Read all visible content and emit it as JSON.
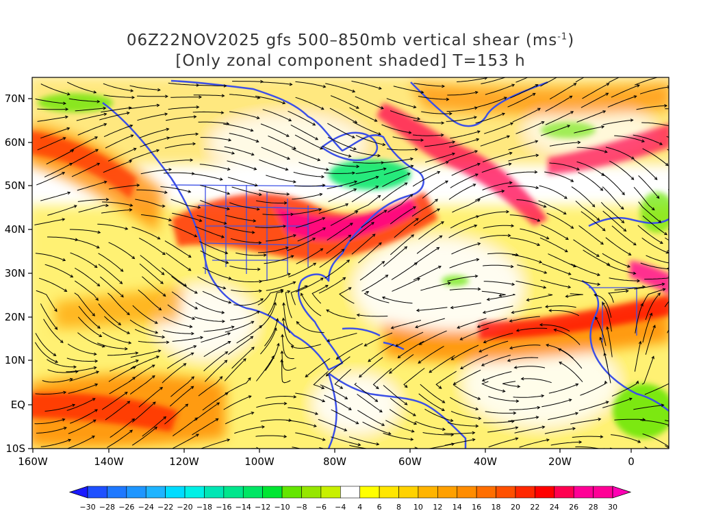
{
  "title": {
    "line1_main": "06Z22NOV2025 gfs 500–850mb vertical shear (ms",
    "line1_sup": "-1",
    "line1_end": ")",
    "line2": "[Only zonal component shaded] T=153 h"
  },
  "axes": {
    "lat_labels": [
      "70N",
      "60N",
      "50N",
      "40N",
      "30N",
      "20N",
      "10N",
      "EQ",
      "10S"
    ],
    "lon_labels": [
      "160W",
      "140W",
      "120W",
      "100W",
      "80W",
      "60W",
      "40W",
      "20W",
      "0"
    ]
  },
  "colorbar": {
    "labels": [
      "-30",
      "-28",
      "-26",
      "-24",
      "-22",
      "-20",
      "-18",
      "-16",
      "-14",
      "-12",
      "-10",
      "-8",
      "-6",
      "-4",
      "4",
      "6",
      "8",
      "10",
      "12",
      "14",
      "16",
      "18",
      "20",
      "22",
      "24",
      "26",
      "28",
      "30"
    ],
    "colors": [
      "#1a1aff",
      "#1e50ff",
      "#1e78ff",
      "#1e96ff",
      "#1eb4ff",
      "#00dcff",
      "#00f0e6",
      "#00e6b4",
      "#00e68c",
      "#00e664",
      "#00e632",
      "#64e600",
      "#96e600",
      "#c8f000",
      "#ffffff",
      "#ffff00",
      "#ffe600",
      "#ffd200",
      "#ffb400",
      "#ffa000",
      "#ff8c00",
      "#ff6e00",
      "#ff5000",
      "#ff2800",
      "#ff0000",
      "#ff0050",
      "#ff0096",
      "#ff0096",
      "#ff00b4"
    ]
  }
}
